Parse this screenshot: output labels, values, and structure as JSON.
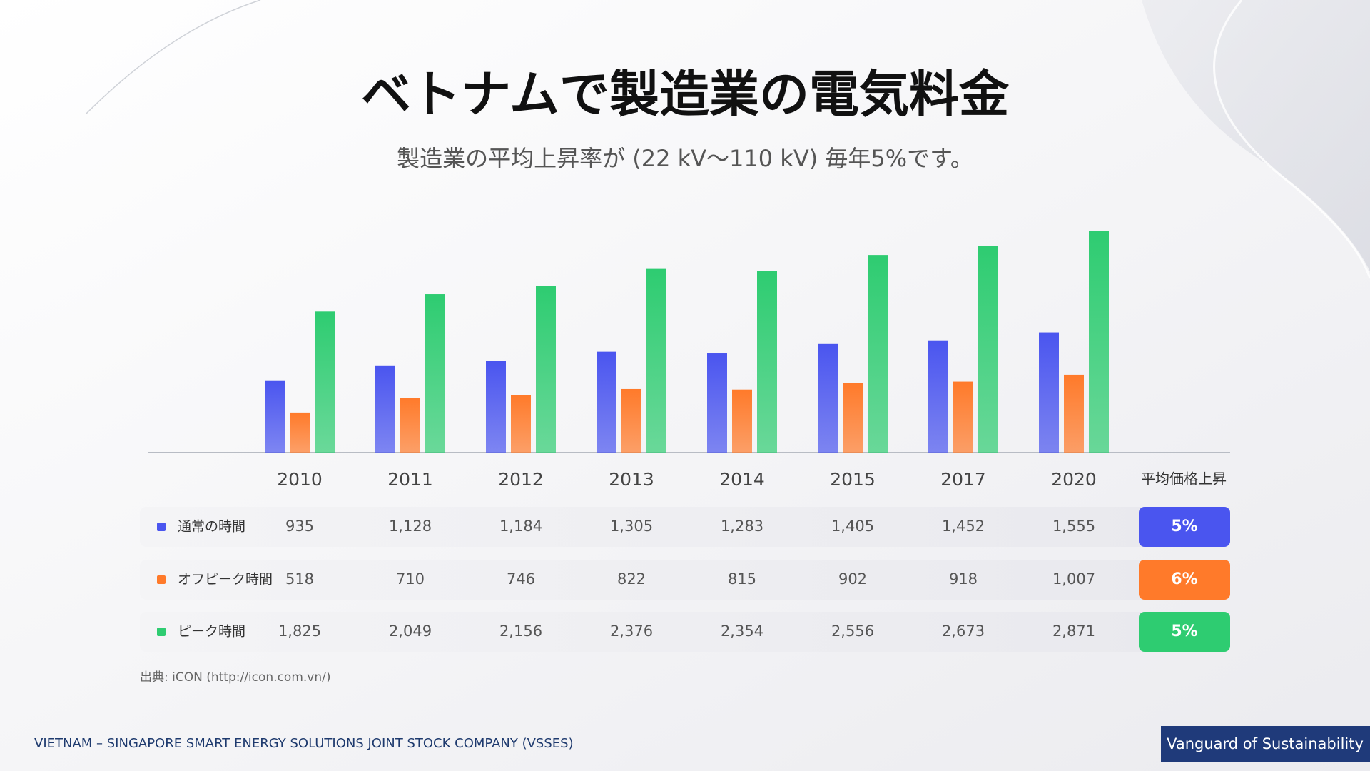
{
  "chart_data": {
    "type": "bar",
    "title": "ベトナムで製造業の電気料金",
    "subtitle": "製造業の平均上昇率が (22 kV〜110 kV) 毎年5%です。",
    "categories": [
      "2010",
      "2011",
      "2012",
      "2013",
      "2014",
      "2015",
      "2017",
      "2020"
    ],
    "increase_header": "平均価格上昇",
    "series": [
      {
        "name": "通常の時間",
        "color": "#4a55ef",
        "values": [
          935,
          1128,
          1184,
          1305,
          1283,
          1405,
          1452,
          1555
        ],
        "value_labels": [
          "935",
          "1,128",
          "1,184",
          "1,305",
          "1,283",
          "1,405",
          "1,452",
          "1,555"
        ],
        "increase": 5,
        "increase_label": "5%"
      },
      {
        "name": "オフピーク時間",
        "color": "#ff7a2a",
        "values": [
          518,
          710,
          746,
          822,
          815,
          902,
          918,
          1007
        ],
        "value_labels": [
          "518",
          "710",
          "746",
          "822",
          "815",
          "902",
          "918",
          "1,007"
        ],
        "increase": 6,
        "increase_label": "6%"
      },
      {
        "name": "ピーク時間",
        "color": "#2ecc71",
        "values": [
          1825,
          2049,
          2156,
          2376,
          2354,
          2556,
          2673,
          2871
        ],
        "value_labels": [
          "1,825",
          "2,049",
          "2,156",
          "2,376",
          "2,354",
          "2,556",
          "2,673",
          "2,871"
        ],
        "increase": 5,
        "increase_label": "5%"
      }
    ],
    "source": "出典: iCON (http://icon.com.vn/)"
  },
  "footer": {
    "company": "VIETNAM – SINGAPORE SMART ENERGY SOLUTIONS JOINT STOCK COMPANY (VSSES)",
    "tagline": "Vanguard of Sustainability"
  }
}
